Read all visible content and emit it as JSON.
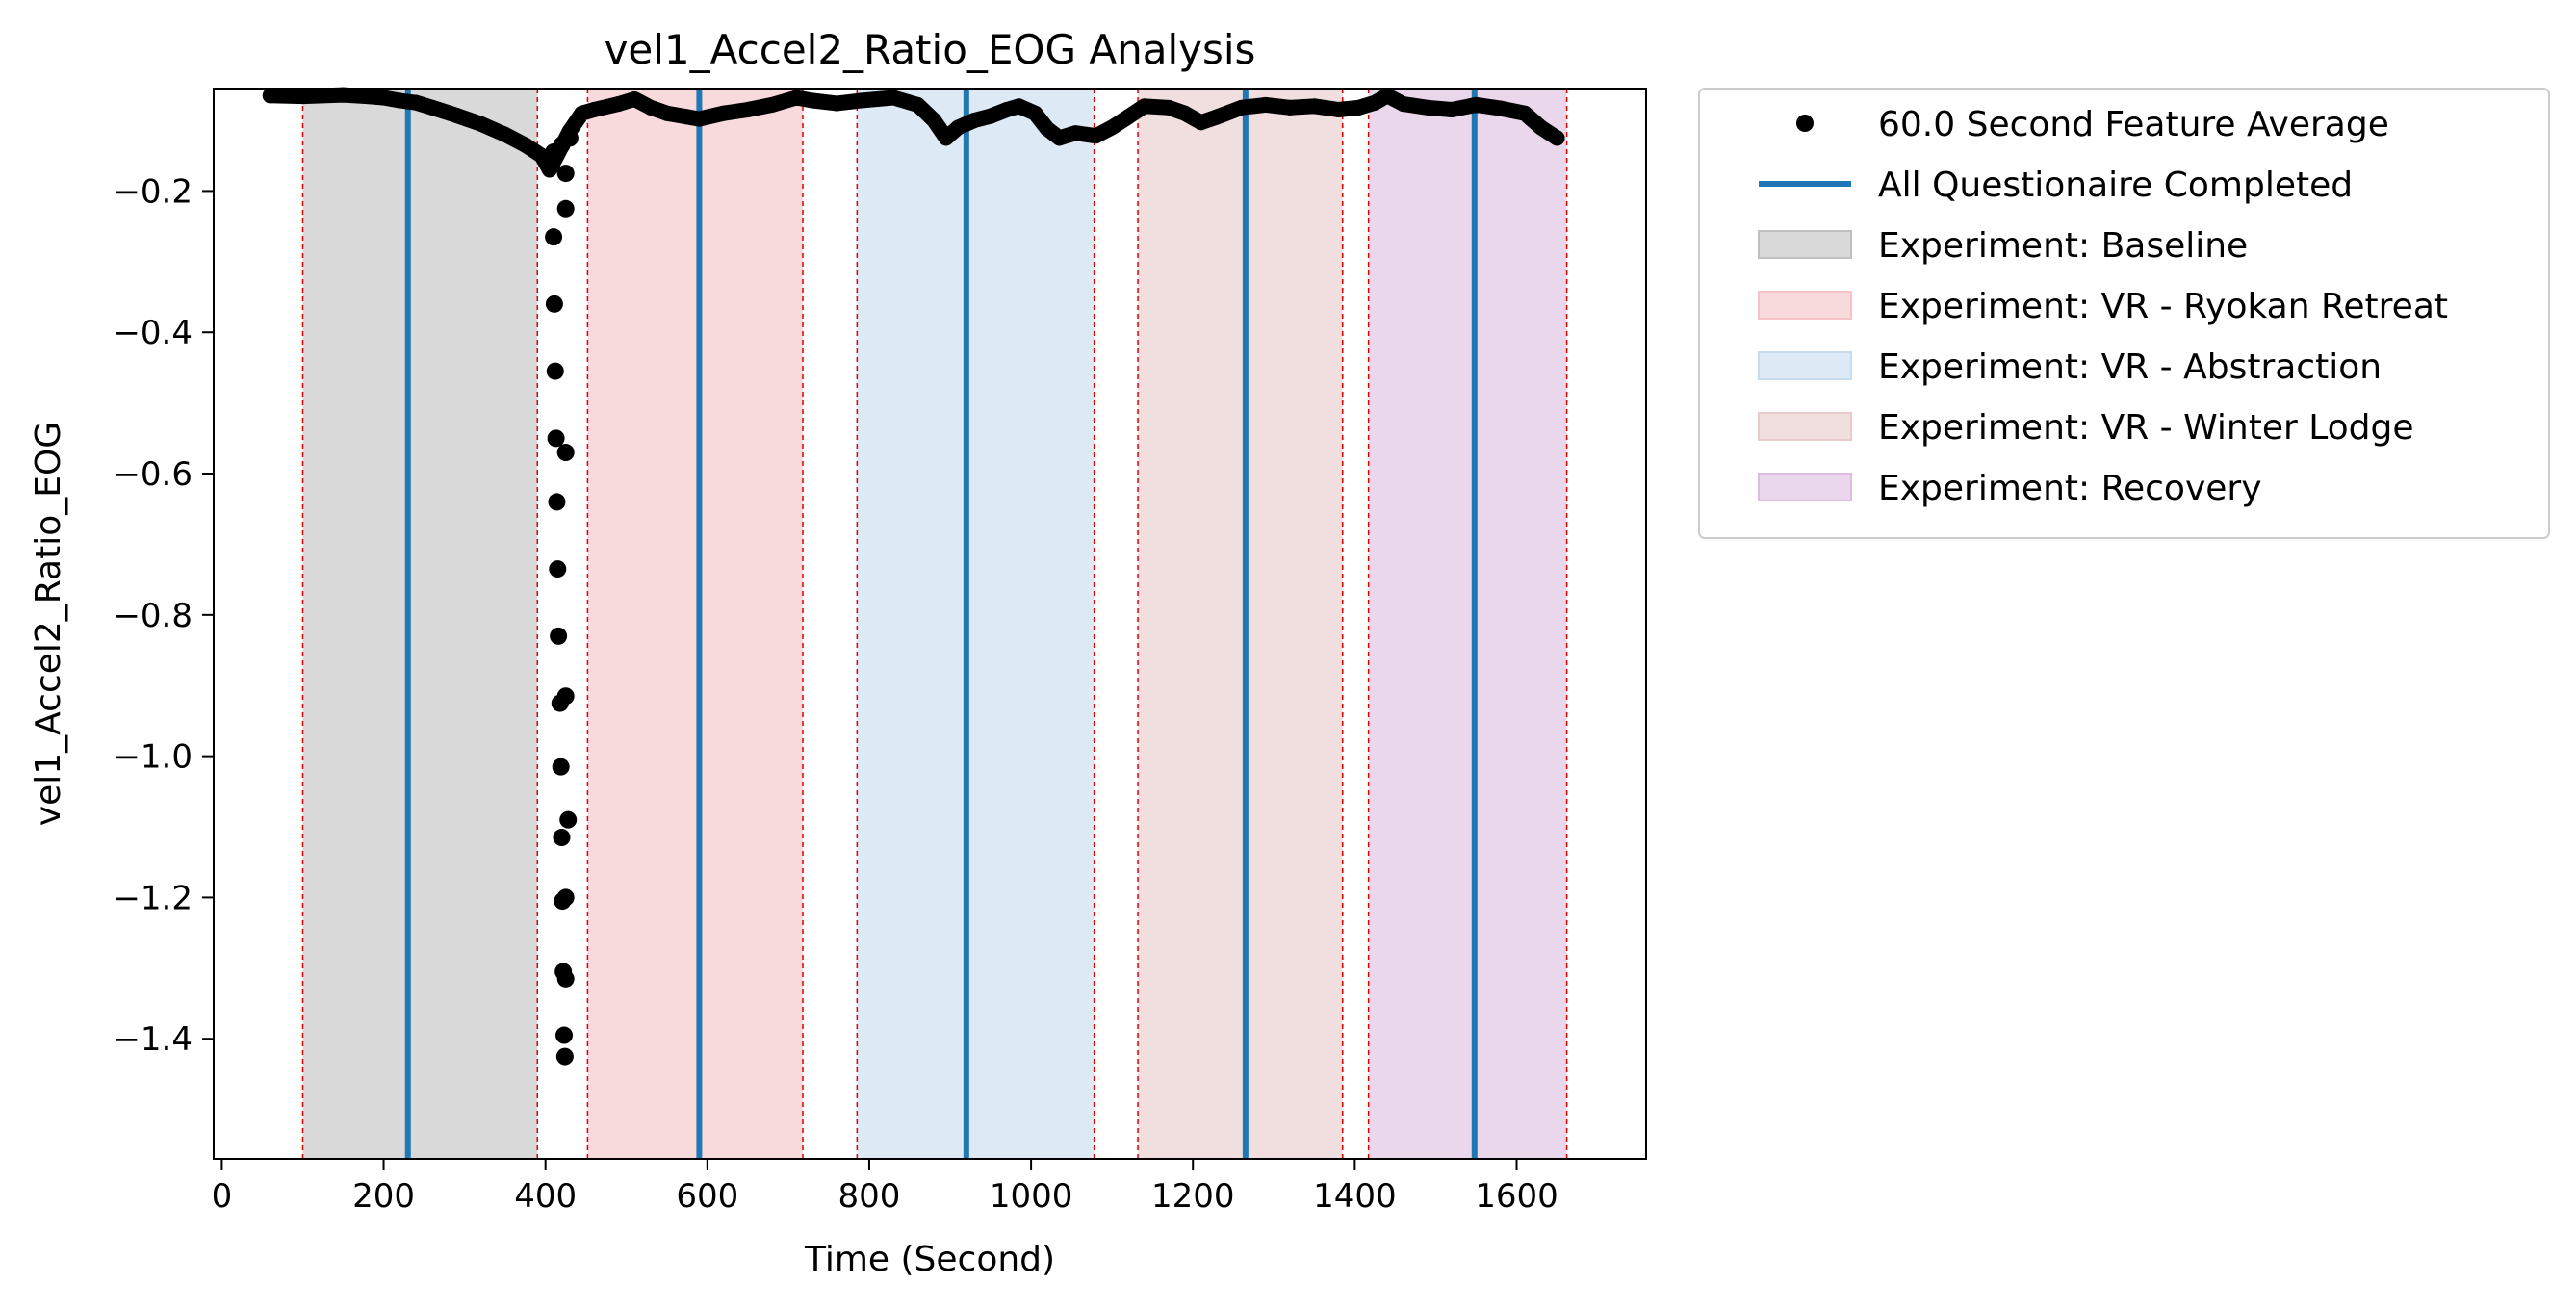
{
  "chart_data": {
    "type": "scatter",
    "title": "vel1_Accel2_Ratio_EOG Analysis",
    "xlabel": "Time (Second)",
    "ylabel": "vel1_Accel2_Ratio_EOG",
    "xlim": [
      -10,
      1760
    ],
    "ylim": [
      -1.57,
      -0.055
    ],
    "x_ticks": [
      0,
      200,
      400,
      600,
      800,
      1000,
      1200,
      1400,
      1600
    ],
    "y_ticks": [
      -0.2,
      -0.4,
      -0.6,
      -0.8,
      -1.0,
      -1.2,
      -1.4
    ],
    "x_tick_labels": [
      "0",
      "200",
      "400",
      "600",
      "800",
      "1000",
      "1200",
      "1400",
      "1600"
    ],
    "y_tick_labels": [
      "−0.2",
      "−0.4",
      "−0.6",
      "−0.8",
      "−1.0",
      "−1.2",
      "−1.4"
    ],
    "grid": false,
    "legend_position": "outside-right",
    "series_name": "60.0 Second Feature Average",
    "series_color": "#000000",
    "series_outline": [
      [
        60,
        -0.065
      ],
      [
        100,
        -0.066
      ],
      [
        150,
        -0.064
      ],
      [
        180,
        -0.066
      ],
      [
        200,
        -0.068
      ],
      [
        220,
        -0.072
      ],
      [
        240,
        -0.075
      ],
      [
        260,
        -0.082
      ],
      [
        290,
        -0.093
      ],
      [
        320,
        -0.105
      ],
      [
        350,
        -0.12
      ],
      [
        375,
        -0.135
      ],
      [
        395,
        -0.15
      ],
      [
        405,
        -0.17
      ],
      [
        430,
        -0.115
      ],
      [
        445,
        -0.09
      ],
      [
        460,
        -0.085
      ],
      [
        490,
        -0.077
      ],
      [
        510,
        -0.07
      ],
      [
        530,
        -0.082
      ],
      [
        550,
        -0.09
      ],
      [
        575,
        -0.095
      ],
      [
        590,
        -0.098
      ],
      [
        620,
        -0.09
      ],
      [
        650,
        -0.085
      ],
      [
        680,
        -0.078
      ],
      [
        710,
        -0.068
      ],
      [
        730,
        -0.072
      ],
      [
        760,
        -0.076
      ],
      [
        790,
        -0.072
      ],
      [
        830,
        -0.068
      ],
      [
        860,
        -0.078
      ],
      [
        880,
        -0.1
      ],
      [
        895,
        -0.125
      ],
      [
        910,
        -0.11
      ],
      [
        930,
        -0.1
      ],
      [
        950,
        -0.094
      ],
      [
        970,
        -0.085
      ],
      [
        985,
        -0.08
      ],
      [
        1005,
        -0.09
      ],
      [
        1020,
        -0.112
      ],
      [
        1035,
        -0.125
      ],
      [
        1055,
        -0.118
      ],
      [
        1080,
        -0.122
      ],
      [
        1100,
        -0.11
      ],
      [
        1120,
        -0.095
      ],
      [
        1140,
        -0.08
      ],
      [
        1170,
        -0.082
      ],
      [
        1190,
        -0.09
      ],
      [
        1210,
        -0.103
      ],
      [
        1230,
        -0.095
      ],
      [
        1260,
        -0.082
      ],
      [
        1290,
        -0.078
      ],
      [
        1320,
        -0.082
      ],
      [
        1350,
        -0.08
      ],
      [
        1380,
        -0.085
      ],
      [
        1405,
        -0.082
      ],
      [
        1425,
        -0.075
      ],
      [
        1440,
        -0.065
      ],
      [
        1460,
        -0.077
      ],
      [
        1490,
        -0.082
      ],
      [
        1520,
        -0.085
      ],
      [
        1550,
        -0.078
      ],
      [
        1580,
        -0.083
      ],
      [
        1610,
        -0.09
      ],
      [
        1630,
        -0.11
      ],
      [
        1650,
        -0.125
      ]
    ],
    "scatter_points": [
      [
        410,
        -0.145
      ],
      [
        420,
        -0.135
      ],
      [
        425,
        -0.175
      ],
      [
        430,
        -0.125
      ],
      [
        425,
        -0.225
      ],
      [
        410,
        -0.265
      ],
      [
        411,
        -0.36
      ],
      [
        412,
        -0.455
      ],
      [
        413,
        -0.55
      ],
      [
        425,
        -0.57
      ],
      [
        414,
        -0.64
      ],
      [
        415,
        -0.735
      ],
      [
        416,
        -0.83
      ],
      [
        425,
        -0.915
      ],
      [
        418,
        -0.925
      ],
      [
        419,
        -1.015
      ],
      [
        428,
        -1.09
      ],
      [
        420,
        -1.115
      ],
      [
        425,
        -1.2
      ],
      [
        421,
        -1.205
      ],
      [
        422,
        -1.305
      ],
      [
        425,
        -1.315
      ],
      [
        423,
        -1.395
      ],
      [
        424,
        -1.425
      ]
    ],
    "questionnaire_label": "All Questionaire Completed",
    "questionnaire_color": "#1f77b4",
    "questionnaire_times": [
      230,
      590,
      920,
      1265,
      1548
    ],
    "phases": [
      {
        "label": "Experiment: Baseline",
        "start": 100,
        "end": 390,
        "fill": "#bfbfbf",
        "opacity": 0.6
      },
      {
        "label": "Experiment: VR - Ryokan Retreat",
        "start": 452,
        "end": 718,
        "fill": "#f4c2c7",
        "opacity": 0.6
      },
      {
        "label": "Experiment: VR - Abstraction",
        "start": 785,
        "end": 1078,
        "fill": "#c7dbec",
        "opacity": 0.6
      },
      {
        "label": "Experiment: VR - Winter Lodge",
        "start": 1132,
        "end": 1385,
        "fill": "#e8cac9",
        "opacity": 0.6
      },
      {
        "label": "Experiment: Recovery",
        "start": 1417,
        "end": 1662,
        "fill": "#dcbcdf",
        "opacity": 0.6
      }
    ],
    "boundary_line_color": "#e00000"
  }
}
